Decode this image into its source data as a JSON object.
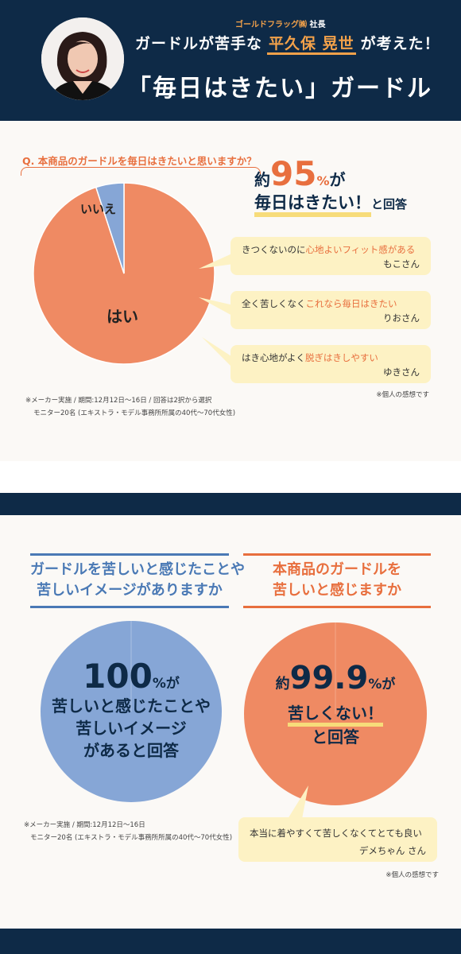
{
  "header": {
    "ruby_company": "ゴールドフラッグ㈱",
    "ruby_title": "社長",
    "line1_pre": "ガードルが苦手な",
    "name": "平久保 晃世",
    "line1_post": "が考えた！",
    "line2": "「毎日はきたい」ガードル"
  },
  "section1": {
    "question": "Q. 本商品のガードルを毎日はきたいと思いますか？",
    "pie_labels": {
      "no": "いいえ",
      "yes": "はい"
    },
    "stat": {
      "prefix": "約",
      "number": "95",
      "unit": "%",
      "suffix": "が",
      "line2_main": "毎日はきたい！",
      "line2_tail": "と回答"
    },
    "bubbles": [
      {
        "text_pre": "きつくないのに",
        "text_em": "心地よいフィット感がある",
        "who": "もこさん"
      },
      {
        "text_pre": "全く苦しくなく",
        "text_em": "これなら毎日はきたい",
        "who": "りおさん"
      },
      {
        "text_pre": "はき心地がよく",
        "text_em": "脱ぎはきしやすい",
        "who": "ゆきさん"
      }
    ],
    "footnote_right": "※個人の感想です",
    "survey_note1": "※メーカー実施 / 期間:12月12日〜16日 / 回答は2択から選択",
    "survey_note2": "モニター20名 (エキストラ・モデル事務所所属の40代〜70代女性)"
  },
  "chart_data": [
    {
      "type": "pie",
      "categories": [
        "はい",
        "いいえ"
      ],
      "values": [
        95,
        5
      ],
      "colors": [
        "#ef8a63",
        "#86a6d6"
      ]
    },
    {
      "type": "pie",
      "categories": [
        "苦しいと感じたことや苦しいイメージがある"
      ],
      "values": [
        100
      ],
      "colors": [
        "#86a6d6"
      ]
    },
    {
      "type": "pie",
      "categories": [
        "苦しくない"
      ],
      "values": [
        99.9
      ],
      "colors": [
        "#ef8a63"
      ]
    }
  ],
  "section2": {
    "left_heading_1": "ガードルを苦しいと感じたことや",
    "left_heading_2": "苦しいイメージがありますか",
    "right_heading_1": "本商品のガードルを",
    "right_heading_2": "苦しいと感じますか",
    "left_stat": {
      "number": "100",
      "unit": "%",
      "suffix": "が",
      "l1": "苦しいと感じたことや",
      "l2": "苦しいイメージ",
      "l3": "があると回答"
    },
    "right_stat": {
      "prefix": "約",
      "number": "99.9",
      "unit": "%",
      "suffix": "が",
      "l1": "苦しくない！",
      "l2": "と回答"
    },
    "survey_note1": "※メーカー実施 / 期間:12月12日〜16日",
    "survey_note2": "モニター20名 (エキストラ・モデル事務所所属の40代〜70代女性)",
    "bubble": {
      "text": "本当に着やすくて苦しくなくてとても良い",
      "who": "デメちゃん さん"
    },
    "footnote_right": "※個人の感想です"
  },
  "colors": {
    "navy": "#0e2a47",
    "orange": "#e86f3e",
    "blue": "#4a79b5",
    "yellow": "#fdf2c4"
  }
}
